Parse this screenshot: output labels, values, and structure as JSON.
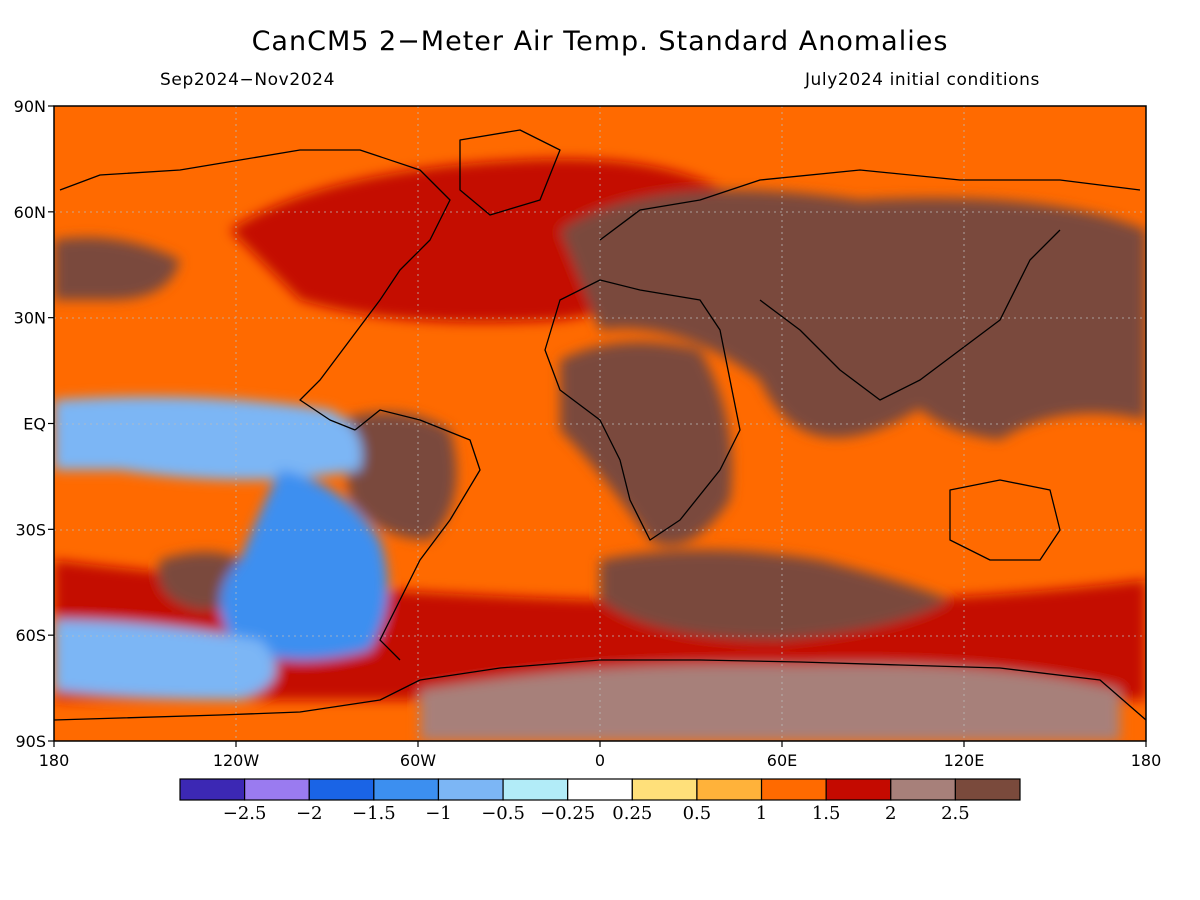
{
  "header": {
    "title": "CanCM5 2−Meter Air Temp. Standard Anomalies",
    "period": "Sep2024−Nov2024",
    "init": "July2024 initial conditions"
  },
  "axes": {
    "lat_labels": [
      "90N",
      "60N",
      "30N",
      "EQ",
      "30S",
      "60S",
      "90S"
    ],
    "lon_labels": [
      "180",
      "120W",
      "60W",
      "0",
      "60E",
      "120E",
      "180"
    ]
  },
  "colorbar": {
    "colors": [
      "#3c28b4",
      "#9a7bf0",
      "#1a64e6",
      "#3c8ff0",
      "#7cb6f5",
      "#b2ecf8",
      "#ffffff",
      "#ffe07a",
      "#ffb23a",
      "#ff6a00",
      "#c40a00",
      "#a7807a",
      "#7a4a3c"
    ],
    "labels": [
      "−2.5",
      "−2",
      "−1.5",
      "−1",
      "−0.5",
      "−0.25",
      "0.25",
      "0.5",
      "1",
      "1.5",
      "2",
      "2.5"
    ]
  },
  "map": {
    "background_color": "#ff6a00",
    "regions": [
      {
        "name": "tropical-pacific-cool",
        "color": "#7cb6f5"
      },
      {
        "name": "south-pacific-cool",
        "color": "#3c8ff0"
      },
      {
        "name": "northwest-pacific-warm",
        "color": "#7a4a3c"
      },
      {
        "name": "north-atlantic-warm",
        "color": "#c40a00"
      },
      {
        "name": "eurasia-warm",
        "color": "#7a4a3c"
      },
      {
        "name": "africa-warm",
        "color": "#7a4a3c"
      },
      {
        "name": "antarctica-warm",
        "color": "#a7807a"
      },
      {
        "name": "southern-ocean-warm",
        "color": "#c40a00"
      }
    ]
  }
}
